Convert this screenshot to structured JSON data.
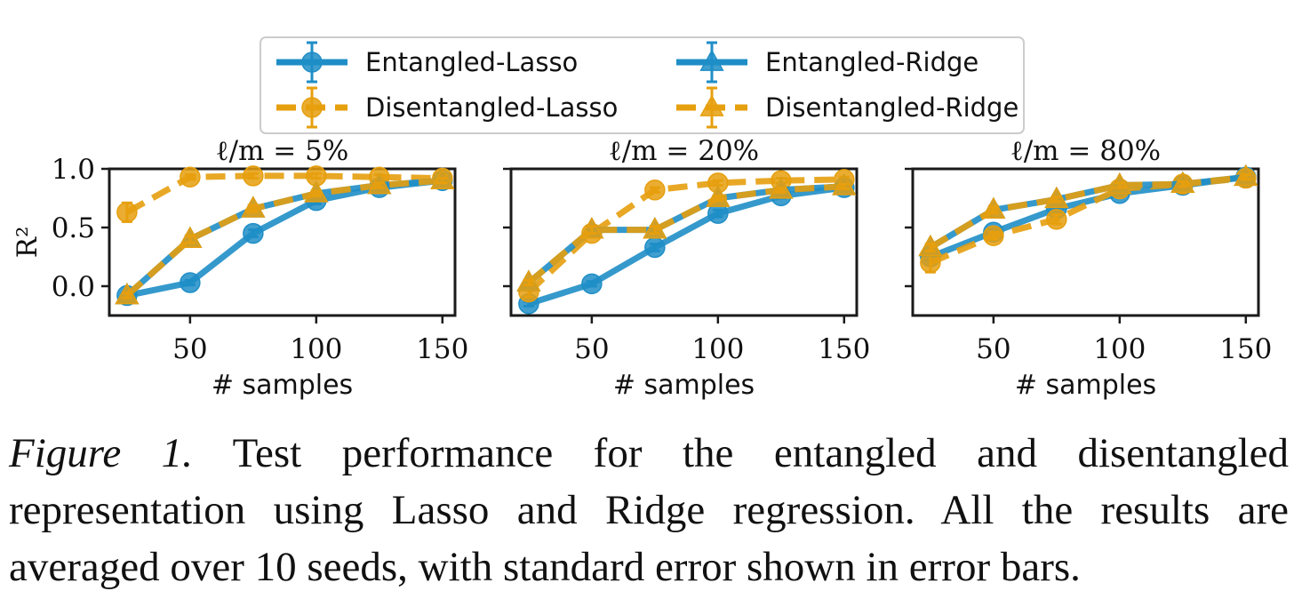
{
  "colors": {
    "entangled": "#1f8ec7",
    "disentangled": "#e69f0e",
    "frame": "#1a1a1a"
  },
  "legend": {
    "placement": "top-center",
    "items": [
      {
        "label": "Entangled-Lasso",
        "series": "Entangled-Lasso"
      },
      {
        "label": "Entangled-Ridge",
        "series": "Entangled-Ridge"
      },
      {
        "label": "Disentangled-Lasso",
        "series": "Disentangled-Lasso"
      },
      {
        "label": "Disentangled-Ridge",
        "series": "Disentangled-Ridge"
      }
    ]
  },
  "chart_data": [
    {
      "type": "line",
      "title": "ℓ/m = 5%",
      "xlabel": "# samples",
      "ylabel": "R²",
      "x": [
        25,
        50,
        75,
        100,
        125,
        150
      ],
      "xlim": [
        18,
        155
      ],
      "ylim": [
        -0.25,
        1.0
      ],
      "xticks": [
        50,
        100,
        150
      ],
      "xtick_labels": [
        "50",
        "100",
        "150"
      ],
      "yticks": [
        0.0,
        0.5,
        1.0
      ],
      "ytick_labels": [
        "0.0",
        "0.5",
        "1.0"
      ],
      "show_yticklabels": true,
      "grid": false,
      "series": [
        {
          "name": "Entangled-Lasso",
          "marker": "circle",
          "dash": "solid",
          "color": "#1f8ec7",
          "values": [
            -0.08,
            0.03,
            0.45,
            0.73,
            0.84,
            0.9
          ],
          "errors": [
            0.02,
            0.02,
            0.03,
            0.03,
            0.02,
            0.02
          ]
        },
        {
          "name": "Entangled-Ridge",
          "marker": "triangle",
          "dash": "solid",
          "color": "#1f8ec7",
          "values": [
            -0.08,
            0.4,
            0.66,
            0.79,
            0.86,
            0.9
          ],
          "errors": [
            0.02,
            0.03,
            0.03,
            0.02,
            0.02,
            0.02
          ]
        },
        {
          "name": "Disentangled-Lasso",
          "marker": "circle",
          "dash": "dashed",
          "color": "#e69f0e",
          "values": [
            0.63,
            0.93,
            0.94,
            0.94,
            0.93,
            0.92
          ],
          "errors": [
            0.08,
            0.02,
            0.02,
            0.02,
            0.02,
            0.02
          ]
        },
        {
          "name": "Disentangled-Ridge",
          "marker": "triangle",
          "dash": "dashed",
          "color": "#e69f0e",
          "values": [
            -0.08,
            0.4,
            0.66,
            0.79,
            0.86,
            0.9
          ],
          "errors": [
            0.02,
            0.03,
            0.03,
            0.02,
            0.02,
            0.02
          ]
        }
      ]
    },
    {
      "type": "line",
      "title": "ℓ/m = 20%",
      "xlabel": "# samples",
      "ylabel": "",
      "x": [
        25,
        50,
        75,
        100,
        125,
        150
      ],
      "xlim": [
        18,
        155
      ],
      "ylim": [
        -0.25,
        1.0
      ],
      "xticks": [
        50,
        100,
        150
      ],
      "xtick_labels": [
        "50",
        "100",
        "150"
      ],
      "yticks": [
        0.0,
        0.5,
        1.0
      ],
      "ytick_labels": [
        "",
        "",
        ""
      ],
      "show_yticklabels": false,
      "grid": false,
      "series": [
        {
          "name": "Entangled-Lasso",
          "marker": "circle",
          "dash": "solid",
          "color": "#1f8ec7",
          "values": [
            -0.15,
            0.02,
            0.33,
            0.62,
            0.77,
            0.84
          ],
          "errors": [
            0.02,
            0.02,
            0.03,
            0.03,
            0.02,
            0.02
          ]
        },
        {
          "name": "Entangled-Ridge",
          "marker": "triangle",
          "dash": "solid",
          "color": "#1f8ec7",
          "values": [
            0.03,
            0.48,
            0.48,
            0.75,
            0.82,
            0.85
          ],
          "errors": [
            0.02,
            0.03,
            0.03,
            0.02,
            0.02,
            0.02
          ]
        },
        {
          "name": "Disentangled-Lasso",
          "marker": "circle",
          "dash": "dashed",
          "color": "#e69f0e",
          "values": [
            -0.05,
            0.45,
            0.82,
            0.88,
            0.9,
            0.91
          ],
          "errors": [
            0.04,
            0.03,
            0.02,
            0.02,
            0.02,
            0.02
          ]
        },
        {
          "name": "Disentangled-Ridge",
          "marker": "triangle",
          "dash": "dashed",
          "color": "#e69f0e",
          "values": [
            0.03,
            0.48,
            0.48,
            0.75,
            0.82,
            0.85
          ],
          "errors": [
            0.02,
            0.03,
            0.03,
            0.02,
            0.02,
            0.02
          ]
        }
      ]
    },
    {
      "type": "line",
      "title": "ℓ/m = 80%",
      "xlabel": "# samples",
      "ylabel": "",
      "x": [
        25,
        50,
        75,
        100,
        125,
        150
      ],
      "xlim": [
        18,
        155
      ],
      "ylim": [
        -0.25,
        1.0
      ],
      "xticks": [
        50,
        100,
        150
      ],
      "xtick_labels": [
        "50",
        "100",
        "150"
      ],
      "yticks": [
        0.0,
        0.5,
        1.0
      ],
      "ytick_labels": [
        "",
        "",
        ""
      ],
      "show_yticklabels": false,
      "grid": false,
      "series": [
        {
          "name": "Entangled-Lasso",
          "marker": "circle",
          "dash": "solid",
          "color": "#1f8ec7",
          "values": [
            0.25,
            0.46,
            0.66,
            0.79,
            0.86,
            0.93
          ],
          "errors": [
            0.03,
            0.03,
            0.03,
            0.02,
            0.02,
            0.02
          ]
        },
        {
          "name": "Entangled-Ridge",
          "marker": "triangle",
          "dash": "solid",
          "color": "#1f8ec7",
          "values": [
            0.33,
            0.65,
            0.74,
            0.86,
            0.87,
            0.93
          ],
          "errors": [
            0.03,
            0.03,
            0.02,
            0.02,
            0.02,
            0.02
          ]
        },
        {
          "name": "Disentangled-Lasso",
          "marker": "circle",
          "dash": "dashed",
          "color": "#e69f0e",
          "values": [
            0.2,
            0.43,
            0.57,
            0.83,
            0.87,
            0.92
          ],
          "errors": [
            0.08,
            0.03,
            0.04,
            0.02,
            0.02,
            0.02
          ]
        },
        {
          "name": "Disentangled-Ridge",
          "marker": "triangle",
          "dash": "dashed",
          "color": "#e69f0e",
          "values": [
            0.33,
            0.65,
            0.74,
            0.86,
            0.87,
            0.93
          ],
          "errors": [
            0.03,
            0.03,
            0.02,
            0.02,
            0.02,
            0.02
          ]
        }
      ]
    }
  ],
  "caption": {
    "label": "Figure 1.",
    "text": "Test performance for the entangled and disentangled representation using Lasso and Ridge regression. All the results are averaged over 10 seeds, with standard error shown in error bars."
  }
}
